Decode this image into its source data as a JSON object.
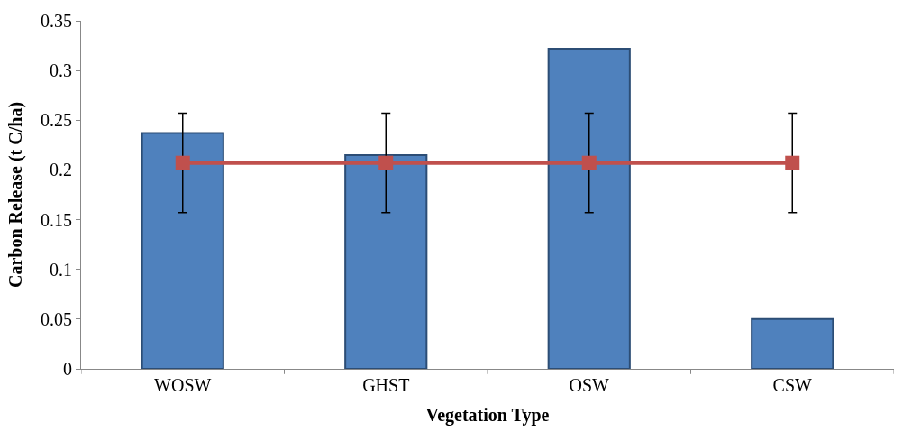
{
  "chart_data": {
    "type": "bar",
    "xlabel": "Vegetation Type",
    "ylabel": "Carbon Release (t C/ha)",
    "categories": [
      "WOSW",
      "GHST",
      "OSW",
      "CSW"
    ],
    "series": [
      {
        "color": "#4f81bd",
        "values": [
          0.237,
          0.215,
          0.322,
          0.05
        ]
      },
      {
        "type": "line",
        "color": "#c0504d",
        "values": [
          0.207,
          0.207,
          0.207,
          0.207
        ],
        "errors": [
          0.05,
          0.05,
          0.05,
          0.05
        ],
        "marker": "square",
        "line_style": "solid"
      }
    ],
    "ylim": [
      0,
      0.35
    ],
    "yticks": [
      0,
      0.05,
      0.1,
      0.15,
      0.2,
      0.25,
      0.3,
      0.35
    ]
  }
}
